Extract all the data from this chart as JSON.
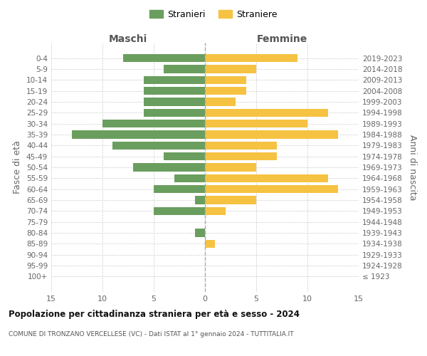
{
  "age_groups": [
    "100+",
    "95-99",
    "90-94",
    "85-89",
    "80-84",
    "75-79",
    "70-74",
    "65-69",
    "60-64",
    "55-59",
    "50-54",
    "45-49",
    "40-44",
    "35-39",
    "30-34",
    "25-29",
    "20-24",
    "15-19",
    "10-14",
    "5-9",
    "0-4"
  ],
  "birth_years": [
    "≤ 1923",
    "1924-1928",
    "1929-1933",
    "1934-1938",
    "1939-1943",
    "1944-1948",
    "1949-1953",
    "1954-1958",
    "1959-1963",
    "1964-1968",
    "1969-1973",
    "1974-1978",
    "1979-1983",
    "1984-1988",
    "1989-1993",
    "1994-1998",
    "1999-2003",
    "2004-2008",
    "2009-2013",
    "2014-2018",
    "2019-2023"
  ],
  "males": [
    0,
    0,
    0,
    0,
    1,
    0,
    5,
    1,
    5,
    3,
    7,
    4,
    9,
    13,
    10,
    6,
    6,
    6,
    6,
    4,
    8
  ],
  "females": [
    0,
    0,
    0,
    1,
    0,
    0,
    2,
    5,
    13,
    12,
    5,
    7,
    7,
    13,
    10,
    12,
    3,
    4,
    4,
    5,
    9
  ],
  "male_color": "#6a9e5e",
  "female_color": "#f5c242",
  "background_color": "#ffffff",
  "grid_color": "#cccccc",
  "title": "Popolazione per cittadinanza straniera per età e sesso - 2024",
  "subtitle": "COMUNE DI TRONZANO VERCELLESE (VC) - Dati ISTAT al 1° gennaio 2024 - TUTTITALIA.IT",
  "left_label": "Maschi",
  "right_label": "Femmine",
  "y_left_label": "Fasce di età",
  "y_right_label": "Anni di nascita",
  "legend_males": "Stranieri",
  "legend_females": "Straniere",
  "xlim": 15,
  "dashed_line_color": "#aaaaaa"
}
